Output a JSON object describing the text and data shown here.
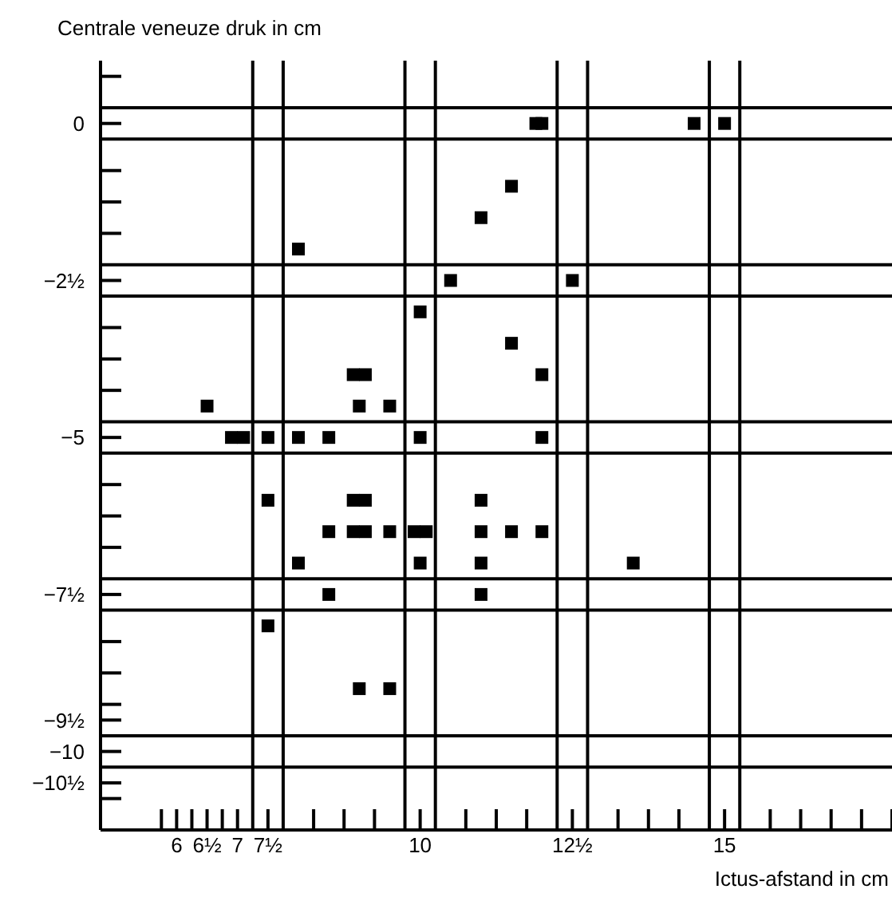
{
  "chart_data": {
    "type": "scatter",
    "xlabel": "Ictus-afstand in cm",
    "ylabel": "Centrale veneuze druk in cm",
    "marker": "square",
    "series": [
      {
        "color": "#000000",
        "x": [
          8.0,
          10,
          8.9,
          9.1,
          6.5,
          9,
          9.5,
          6.9,
          7.1,
          7.5,
          8,
          8.5,
          10,
          12,
          11.9,
          12,
          14.5,
          15,
          11.5,
          11,
          10.5,
          12.5,
          11.5,
          12,
          7.5,
          8.9,
          9.1,
          11,
          8.5,
          8.9,
          9.1,
          9.5,
          9.9,
          10.1,
          11,
          11.5,
          12,
          8,
          10,
          11,
          13.5,
          8.5,
          11,
          7.5,
          9,
          9.5
        ],
        "values": [
          -2,
          -3,
          -4,
          -4,
          -4.5,
          -4.5,
          -4.5,
          -5,
          -5,
          -5,
          -5,
          -5,
          -5,
          -5,
          0,
          0,
          0,
          0,
          -1,
          -1.5,
          -2.5,
          -2.5,
          -3.5,
          -4,
          -6,
          -6,
          -6,
          -6,
          -6.5,
          -6.5,
          -6.5,
          -6.5,
          -6.5,
          -6.5,
          -6.5,
          -6.5,
          -6.5,
          -7,
          -7,
          -7,
          -7,
          -7.5,
          -7.5,
          -8,
          -9,
          -9
        ]
      }
    ],
    "xlim": [
      4.75,
      17.75
    ],
    "ylim": [
      -11.25,
      1
    ],
    "xticks": [
      {
        "value": 5.75,
        "label": null
      },
      {
        "value": 6,
        "label": "6"
      },
      {
        "value": 6.25,
        "label": null
      },
      {
        "value": 6.5,
        "label": "6½"
      },
      {
        "value": 6.75,
        "label": null
      },
      {
        "value": 7,
        "label": "7"
      },
      {
        "value": 7.5,
        "label": "7½"
      },
      {
        "value": 8.25,
        "label": null
      },
      {
        "value": 8.75,
        "label": null
      },
      {
        "value": 9.25,
        "label": null
      },
      {
        "value": 10,
        "label": "10"
      },
      {
        "value": 10.75,
        "label": null
      },
      {
        "value": 11.25,
        "label": null
      },
      {
        "value": 11.75,
        "label": null
      },
      {
        "value": 12.5,
        "label": "12½"
      },
      {
        "value": 13.25,
        "label": null
      },
      {
        "value": 13.75,
        "label": null
      },
      {
        "value": 14.25,
        "label": null
      },
      {
        "value": 15,
        "label": "15"
      },
      {
        "value": 15.75,
        "label": null
      },
      {
        "value": 16.25,
        "label": null
      },
      {
        "value": 16.75,
        "label": null
      },
      {
        "value": 17.25,
        "label": null
      },
      {
        "value": 17.75,
        "label": null
      }
    ],
    "yticks": [
      {
        "value": -10.75,
        "label": null
      },
      {
        "value": -10.5,
        "label": "−10½"
      },
      {
        "value": -10,
        "label": "−10"
      },
      {
        "value": -9.5,
        "label": "−9½"
      },
      {
        "value": -9.25,
        "label": null
      },
      {
        "value": -8.75,
        "label": null
      },
      {
        "value": -8.25,
        "label": null
      },
      {
        "value": -7.5,
        "label": "−7½"
      },
      {
        "value": -6.75,
        "label": null
      },
      {
        "value": -6.25,
        "label": null
      },
      {
        "value": -5.75,
        "label": null
      },
      {
        "value": -5,
        "label": "−5"
      },
      {
        "value": -4.25,
        "label": null
      },
      {
        "value": -3.75,
        "label": null
      },
      {
        "value": -3.25,
        "label": null
      },
      {
        "value": -2.5,
        "label": "−2½"
      },
      {
        "value": -1.75,
        "label": null
      },
      {
        "value": -1.25,
        "label": null
      },
      {
        "value": -0.75,
        "label": null
      },
      {
        "value": 0,
        "label": "0"
      },
      {
        "value": 0.75,
        "label": null
      }
    ],
    "ref_lines": [
      {
        "axis": "x",
        "value": 7.25
      },
      {
        "axis": "x",
        "value": 7.75
      },
      {
        "axis": "x",
        "value": 9.75
      },
      {
        "axis": "x",
        "value": 10.25
      },
      {
        "axis": "x",
        "value": 12.25
      },
      {
        "axis": "x",
        "value": 12.75
      },
      {
        "axis": "x",
        "value": 14.75
      },
      {
        "axis": "x",
        "value": 15.25
      },
      {
        "axis": "y",
        "value": 0.25
      },
      {
        "axis": "y",
        "value": -0.25
      },
      {
        "axis": "y",
        "value": -2.25
      },
      {
        "axis": "y",
        "value": -2.75
      },
      {
        "axis": "y",
        "value": -4.75
      },
      {
        "axis": "y",
        "value": -5.25
      },
      {
        "axis": "y",
        "value": -7.25
      },
      {
        "axis": "y",
        "value": -7.75
      },
      {
        "axis": "y",
        "value": -9.75
      },
      {
        "axis": "y",
        "value": -10.25
      }
    ]
  }
}
